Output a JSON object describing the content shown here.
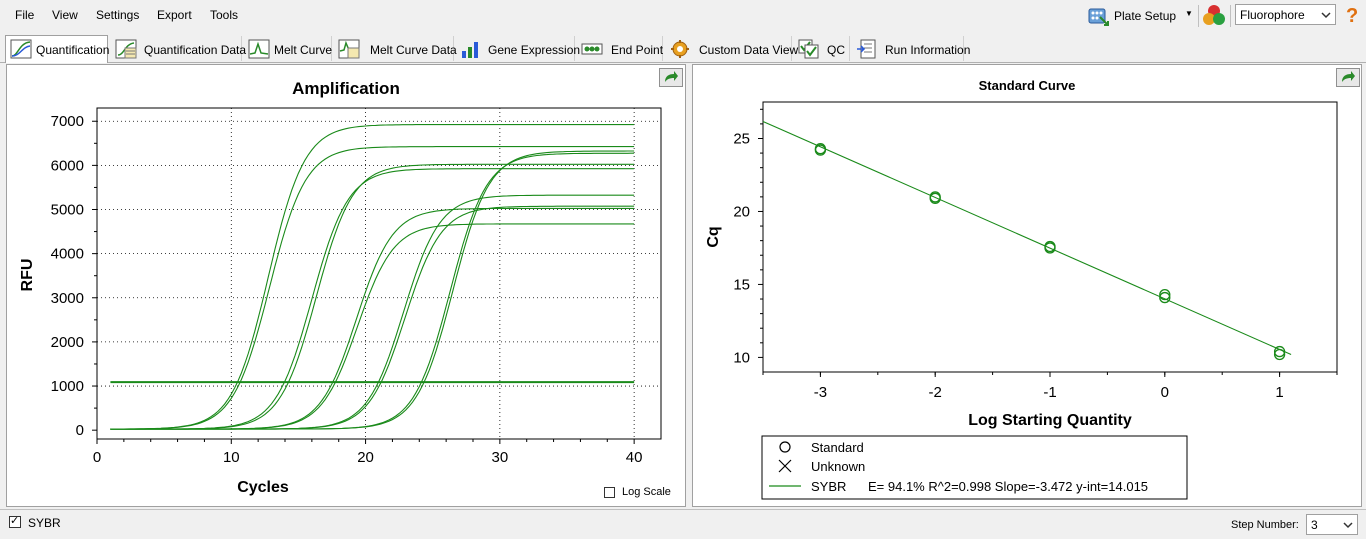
{
  "menu": {
    "items": [
      "File",
      "View",
      "Settings",
      "Export",
      "Tools"
    ]
  },
  "toolbar": {
    "plate_setup_label": "Plate Setup",
    "fluorophore_select": "Fluorophore",
    "icons": [
      "plate-setup-icon",
      "fluorophore-icon",
      "help-icon"
    ]
  },
  "tabs": [
    {
      "label": "Quantification",
      "icon": "quantification-icon",
      "active": true
    },
    {
      "label": "Quantification Data",
      "icon": "quantification-data-icon"
    },
    {
      "label": "Melt Curve",
      "icon": "melt-curve-icon"
    },
    {
      "label": "Melt Curve Data",
      "icon": "melt-curve-data-icon"
    },
    {
      "label": "Gene Expression",
      "icon": "gene-expression-icon"
    },
    {
      "label": "End Point",
      "icon": "end-point-icon"
    },
    {
      "label": "Custom Data View",
      "icon": "custom-data-view-icon"
    },
    {
      "label": "QC",
      "icon": "qc-icon"
    },
    {
      "label": "Run Information",
      "icon": "run-information-icon"
    }
  ],
  "amplification": {
    "title": "Amplification",
    "log_scale_label": "Log Scale",
    "log_scale_checked": false,
    "chart_data": {
      "type": "line",
      "title": "Amplification",
      "xlabel": "Cycles",
      "ylabel": "RFU",
      "xlim": [
        0,
        42
      ],
      "ylim": [
        -200,
        7300
      ],
      "x_ticks": [
        0,
        10,
        20,
        30,
        40
      ],
      "y_ticks": [
        0,
        1000,
        2000,
        3000,
        4000,
        5000,
        6000,
        7000
      ],
      "grid": true,
      "threshold": 1090,
      "line_color": "#1a8a1a",
      "series": [
        {
          "cq": 10.5,
          "plateau": 6900
        },
        {
          "cq": 10.7,
          "plateau": 6400
        },
        {
          "cq": 14.0,
          "plateau": 5900
        },
        {
          "cq": 14.3,
          "plateau": 6000
        },
        {
          "cq": 17.6,
          "plateau": 5000
        },
        {
          "cq": 17.8,
          "plateau": 4650
        },
        {
          "cq": 21.0,
          "plateau": 5300
        },
        {
          "cq": 21.2,
          "plateau": 5050
        },
        {
          "cq": 24.2,
          "plateau": 6250
        },
        {
          "cq": 24.4,
          "plateau": 6300
        }
      ]
    }
  },
  "standard_curve": {
    "title": "Standard Curve",
    "chart_data": {
      "type": "scatter",
      "title": "Standard Curve",
      "xlabel": "Log Starting Quantity",
      "ylabel": "Cq",
      "xlim": [
        -3.5,
        1.5
      ],
      "ylim": [
        9,
        27.5
      ],
      "x_ticks": [
        -3,
        -2,
        -1,
        0,
        1
      ],
      "y_ticks": [
        10,
        15,
        20,
        25
      ],
      "grid": false,
      "standards": [
        {
          "x": -3,
          "y": 24.3
        },
        {
          "x": -3,
          "y": 24.2
        },
        {
          "x": -2,
          "y": 21.0
        },
        {
          "x": -2,
          "y": 20.9
        },
        {
          "x": -1,
          "y": 17.6
        },
        {
          "x": -1,
          "y": 17.5
        },
        {
          "x": 0,
          "y": 14.3
        },
        {
          "x": 0,
          "y": 14.1
        },
        {
          "x": 1,
          "y": 10.4
        },
        {
          "x": 1,
          "y": 10.2
        }
      ],
      "fit": {
        "slope": -3.472,
        "intercept": 14.015,
        "x_range": [
          -3.5,
          1.1
        ]
      },
      "line_color": "#1a8a1a"
    },
    "legend": {
      "standard_label": "Standard",
      "unknown_label": "Unknown",
      "series_name": "SYBR",
      "stats": "E= 94.1% R^2=0.998 Slope=-3.472 y-int=14.015"
    }
  },
  "statusbar": {
    "sybr_label": "SYBR",
    "sybr_checked": true,
    "step_label": "Step Number:",
    "step_value": "3"
  }
}
